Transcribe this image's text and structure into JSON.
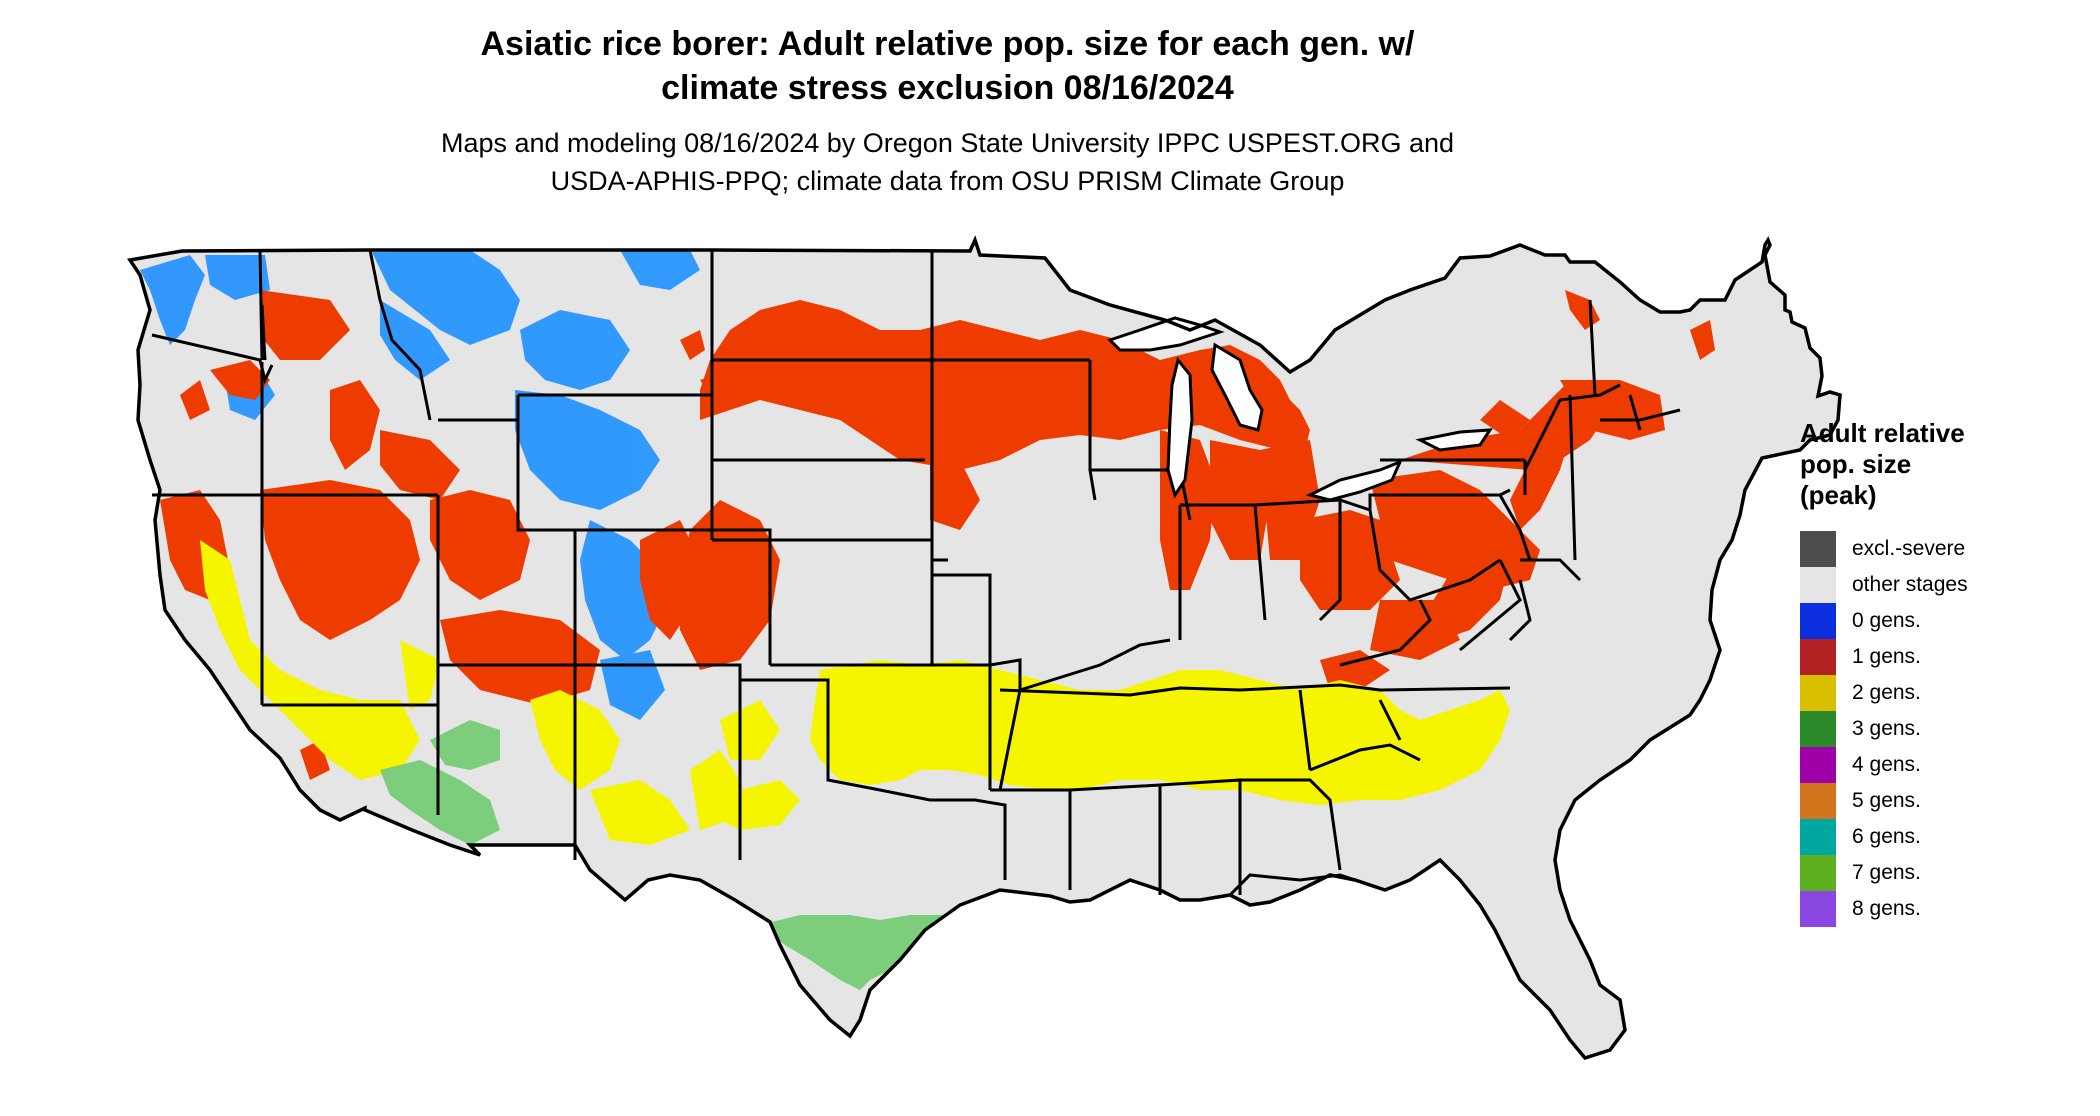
{
  "title": {
    "line1": "Asiatic rice borer: Adult relative pop. size for each gen. w/",
    "line2": "climate stress exclusion 08/16/2024"
  },
  "subtitle": {
    "line1": "Maps and modeling 08/16/2024 by Oregon State University IPPC USPEST.ORG and",
    "line2": "USDA-APHIS-PPQ; climate data from OSU PRISM Climate Group"
  },
  "legend": {
    "title_lines": [
      "Adult relative",
      "pop. size",
      "(peak)"
    ],
    "items": [
      {
        "label": "excl.-severe",
        "color": "#4d4d4d"
      },
      {
        "label": "other stages",
        "color": "#e5e5e5"
      },
      {
        "label": "0 gens.",
        "color": "#0b2fde"
      },
      {
        "label": "1 gens.",
        "color": "#b22222"
      },
      {
        "label": "2 gens.",
        "color": "#d8c000"
      },
      {
        "label": "3 gens.",
        "color": "#2a8a2a"
      },
      {
        "label": "4 gens.",
        "color": "#a000a8"
      },
      {
        "label": "5 gens.",
        "color": "#d2741c"
      },
      {
        "label": "6 gens.",
        "color": "#00a6a0"
      },
      {
        "label": "7 gens.",
        "color": "#5fb020"
      },
      {
        "label": "8 gens.",
        "color": "#8a46e0"
      }
    ]
  },
  "map_colors": {
    "land": "#e5e5e5",
    "cool_blue": "#1e90ff",
    "one_gen_red": "#ee3b00",
    "two_gen_yellow": "#f5f500",
    "three_gen_green": "#7ccd7c",
    "four_gen_magenta": "#e000e0",
    "outline": "#000000"
  }
}
